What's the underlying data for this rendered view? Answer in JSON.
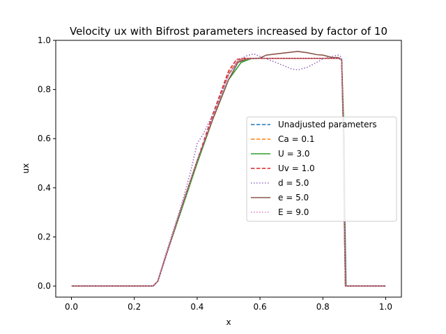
{
  "chart_data": {
    "type": "line",
    "title": "Velocity ux with Bifrost parameters increased by factor of 10",
    "xlabel": "x",
    "ylabel": "ux",
    "xlim": [
      -0.05,
      1.05
    ],
    "ylim": [
      -0.045,
      1.0
    ],
    "xticks": [
      "0.0",
      "0.2",
      "0.4",
      "0.6",
      "0.8",
      "1.0"
    ],
    "yticks": [
      "0.0",
      "0.2",
      "0.4",
      "0.6",
      "0.8",
      "1.0"
    ],
    "grid": false,
    "legend_position": "center-right",
    "series": [
      {
        "name": "Unadjusted parameters",
        "color": "#1f77b4",
        "dash": "dashed",
        "x": [
          0.0,
          0.26,
          0.275,
          0.3,
          0.35,
          0.4,
          0.45,
          0.5,
          0.53,
          0.55,
          0.6,
          0.7,
          0.8,
          0.85,
          0.86,
          0.866,
          0.868,
          0.872,
          1.0
        ],
        "y": [
          0.0,
          0.0,
          0.02,
          0.12,
          0.32,
          0.51,
          0.69,
          0.86,
          0.915,
          0.925,
          0.927,
          0.927,
          0.927,
          0.927,
          0.92,
          0.6,
          0.3,
          0.0,
          0.0
        ]
      },
      {
        "name": "Ca = 0.1",
        "color": "#ff7f0e",
        "dash": "dashed",
        "x": [
          0.0,
          0.26,
          0.275,
          0.3,
          0.35,
          0.4,
          0.45,
          0.5,
          0.53,
          0.55,
          0.6,
          0.7,
          0.8,
          0.85,
          0.86,
          0.866,
          0.868,
          0.872,
          1.0
        ],
        "y": [
          0.0,
          0.0,
          0.02,
          0.12,
          0.32,
          0.51,
          0.69,
          0.865,
          0.918,
          0.926,
          0.927,
          0.927,
          0.927,
          0.927,
          0.92,
          0.6,
          0.3,
          0.0,
          0.0
        ]
      },
      {
        "name": "U = 3.0",
        "color": "#2ca02c",
        "dash": "solid",
        "x": [
          0.0,
          0.26,
          0.275,
          0.3,
          0.35,
          0.4,
          0.45,
          0.5,
          0.54,
          0.57,
          0.6,
          0.7,
          0.8,
          0.85,
          0.86,
          0.868,
          0.87,
          0.874,
          1.0
        ],
        "y": [
          0.0,
          0.0,
          0.02,
          0.12,
          0.31,
          0.5,
          0.68,
          0.84,
          0.91,
          0.925,
          0.927,
          0.927,
          0.927,
          0.927,
          0.92,
          0.6,
          0.3,
          0.0,
          0.0
        ]
      },
      {
        "name": "Uv = 1.0",
        "color": "#d62728",
        "dash": "dashed",
        "x": [
          0.0,
          0.26,
          0.275,
          0.3,
          0.35,
          0.4,
          0.45,
          0.5,
          0.525,
          0.55,
          0.6,
          0.7,
          0.8,
          0.85,
          0.86,
          0.866,
          0.868,
          0.872,
          1.0
        ],
        "y": [
          0.0,
          0.0,
          0.02,
          0.12,
          0.32,
          0.51,
          0.7,
          0.875,
          0.922,
          0.927,
          0.927,
          0.927,
          0.927,
          0.927,
          0.92,
          0.6,
          0.3,
          0.0,
          0.0
        ]
      },
      {
        "name": "d = 5.0",
        "color": "#9467bd",
        "dash": "dotted",
        "x": [
          0.0,
          0.26,
          0.275,
          0.3,
          0.35,
          0.38,
          0.4,
          0.42,
          0.45,
          0.5,
          0.53,
          0.56,
          0.58,
          0.6,
          0.63,
          0.66,
          0.7,
          0.72,
          0.75,
          0.78,
          0.8,
          0.83,
          0.85,
          0.86,
          0.866,
          0.87,
          0.874,
          1.0
        ],
        "y": [
          0.0,
          0.0,
          0.02,
          0.13,
          0.33,
          0.47,
          0.58,
          0.62,
          0.7,
          0.86,
          0.92,
          0.938,
          0.945,
          0.935,
          0.92,
          0.905,
          0.884,
          0.88,
          0.89,
          0.91,
          0.925,
          0.935,
          0.94,
          0.93,
          0.6,
          0.3,
          0.0,
          0.0
        ]
      },
      {
        "name": "e = 5.0",
        "color": "#8c564b",
        "dash": "solid",
        "x": [
          0.0,
          0.26,
          0.275,
          0.3,
          0.35,
          0.4,
          0.45,
          0.5,
          0.53,
          0.56,
          0.6,
          0.62,
          0.66,
          0.7,
          0.72,
          0.75,
          0.78,
          0.8,
          0.83,
          0.85,
          0.86,
          0.866,
          0.868,
          0.872,
          1.0
        ],
        "y": [
          0.0,
          0.0,
          0.02,
          0.12,
          0.32,
          0.51,
          0.68,
          0.84,
          0.91,
          0.925,
          0.928,
          0.94,
          0.946,
          0.952,
          0.955,
          0.95,
          0.942,
          0.94,
          0.93,
          0.93,
          0.92,
          0.6,
          0.3,
          0.0,
          0.0
        ]
      },
      {
        "name": "E = 9.0",
        "color": "#e377c2",
        "dash": "dotted",
        "x": [
          0.0,
          0.26,
          0.275,
          0.3,
          0.35,
          0.4,
          0.45,
          0.5,
          0.53,
          0.55,
          0.6,
          0.7,
          0.8,
          0.85,
          0.86,
          0.866,
          0.868,
          0.872,
          1.0
        ],
        "y": [
          0.0,
          0.0,
          0.02,
          0.12,
          0.32,
          0.51,
          0.69,
          0.86,
          0.915,
          0.925,
          0.927,
          0.927,
          0.927,
          0.927,
          0.92,
          0.6,
          0.3,
          0.0,
          0.0
        ]
      }
    ]
  }
}
